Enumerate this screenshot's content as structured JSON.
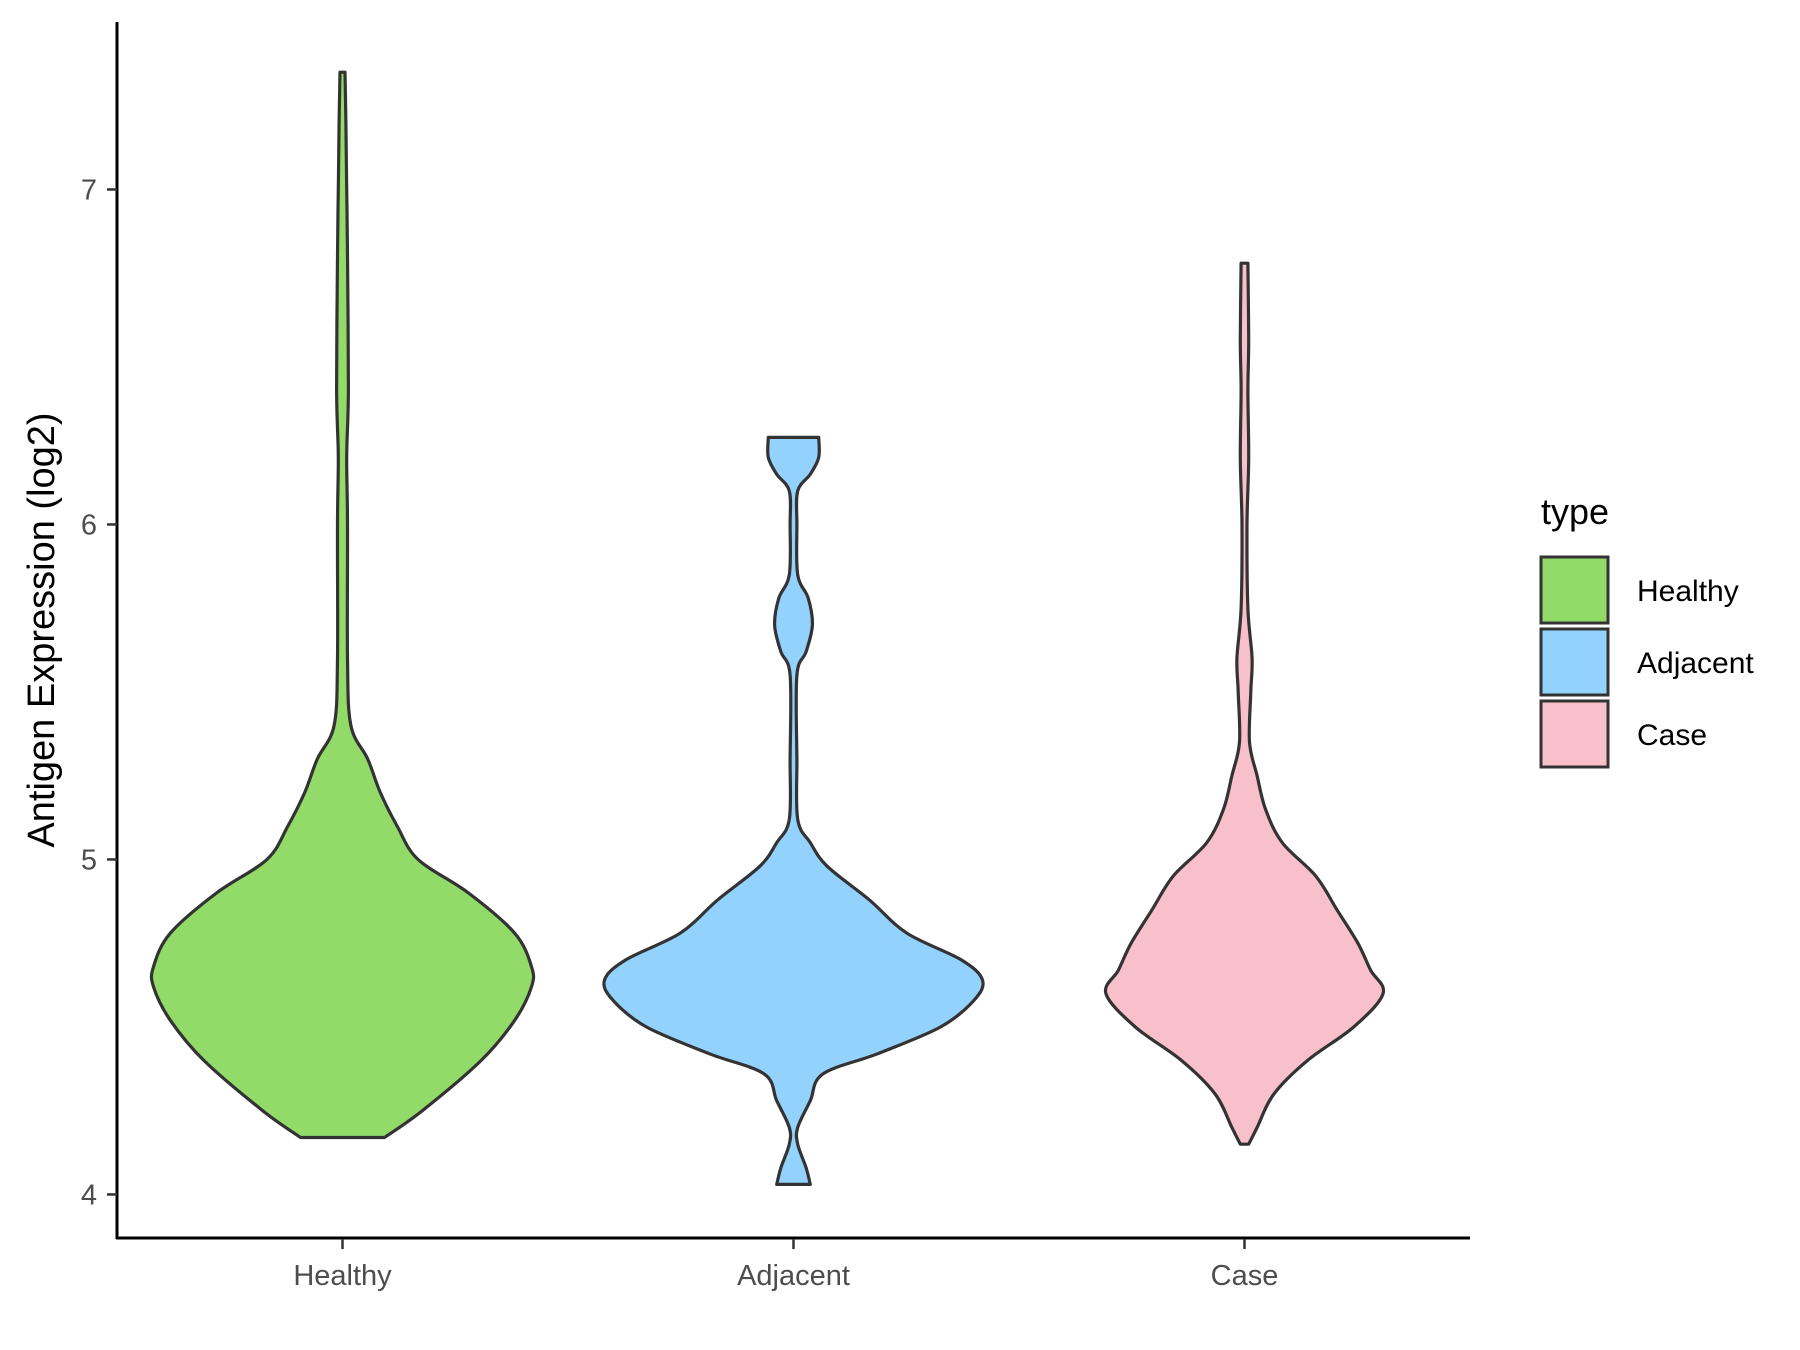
{
  "chart_data": {
    "type": "violin",
    "ylabel": "Antigen Expression (log2)",
    "xlabel": "",
    "categories": [
      "Healthy",
      "Adjacent",
      "Case"
    ],
    "yticks": [
      4,
      5,
      6,
      7
    ],
    "ylim": [
      3.87,
      7.5
    ],
    "grid": false,
    "legend": {
      "title": "type",
      "position": "right",
      "entries": [
        "Healthy",
        "Adjacent",
        "Case"
      ]
    },
    "colors": {
      "Healthy": "#93db69",
      "Adjacent": "#92d2fd",
      "Case": "#f7c0cb",
      "outline": "#333333"
    },
    "series": [
      {
        "category": "Healthy",
        "min": 4.17,
        "max": 7.35,
        "density": [
          [
            4.17,
            0.1
          ],
          [
            4.25,
            0.19
          ],
          [
            4.4,
            0.33
          ],
          [
            4.52,
            0.41
          ],
          [
            4.62,
            0.45
          ],
          [
            4.68,
            0.45
          ],
          [
            4.78,
            0.41
          ],
          [
            4.9,
            0.3
          ],
          [
            5.0,
            0.18
          ],
          [
            5.1,
            0.13
          ],
          [
            5.2,
            0.09
          ],
          [
            5.3,
            0.06
          ],
          [
            5.4,
            0.02
          ],
          [
            5.6,
            0.012
          ],
          [
            6.0,
            0.012
          ],
          [
            6.2,
            0.01
          ],
          [
            6.4,
            0.014
          ],
          [
            6.8,
            0.012
          ],
          [
            7.0,
            0.01
          ],
          [
            7.2,
            0.008
          ],
          [
            7.35,
            0.006
          ]
        ]
      },
      {
        "category": "Adjacent",
        "min": 4.03,
        "max": 6.26,
        "density": [
          [
            4.03,
            0.04
          ],
          [
            4.08,
            0.03
          ],
          [
            4.15,
            0.01
          ],
          [
            4.2,
            0.01
          ],
          [
            4.28,
            0.04
          ],
          [
            4.36,
            0.07
          ],
          [
            4.42,
            0.2
          ],
          [
            4.5,
            0.35
          ],
          [
            4.58,
            0.43
          ],
          [
            4.64,
            0.45
          ],
          [
            4.7,
            0.4
          ],
          [
            4.78,
            0.27
          ],
          [
            4.88,
            0.18
          ],
          [
            4.98,
            0.08
          ],
          [
            5.05,
            0.04
          ],
          [
            5.12,
            0.01
          ],
          [
            5.3,
            0.008
          ],
          [
            5.55,
            0.008
          ],
          [
            5.62,
            0.03
          ],
          [
            5.7,
            0.045
          ],
          [
            5.78,
            0.035
          ],
          [
            5.85,
            0.01
          ],
          [
            6.0,
            0.008
          ],
          [
            6.1,
            0.01
          ],
          [
            6.15,
            0.04
          ],
          [
            6.2,
            0.06
          ],
          [
            6.26,
            0.06
          ]
        ]
      },
      {
        "category": "Case",
        "min": 4.15,
        "max": 6.78,
        "density": [
          [
            4.15,
            0.01
          ],
          [
            4.2,
            0.03
          ],
          [
            4.3,
            0.07
          ],
          [
            4.4,
            0.15
          ],
          [
            4.5,
            0.26
          ],
          [
            4.6,
            0.33
          ],
          [
            4.67,
            0.3
          ],
          [
            4.75,
            0.27
          ],
          [
            4.85,
            0.22
          ],
          [
            4.95,
            0.17
          ],
          [
            5.05,
            0.09
          ],
          [
            5.15,
            0.05
          ],
          [
            5.25,
            0.03
          ],
          [
            5.35,
            0.012
          ],
          [
            5.5,
            0.015
          ],
          [
            5.6,
            0.018
          ],
          [
            5.75,
            0.008
          ],
          [
            6.0,
            0.006
          ],
          [
            6.2,
            0.01
          ],
          [
            6.4,
            0.008
          ],
          [
            6.55,
            0.01
          ],
          [
            6.78,
            0.008
          ]
        ]
      }
    ]
  }
}
